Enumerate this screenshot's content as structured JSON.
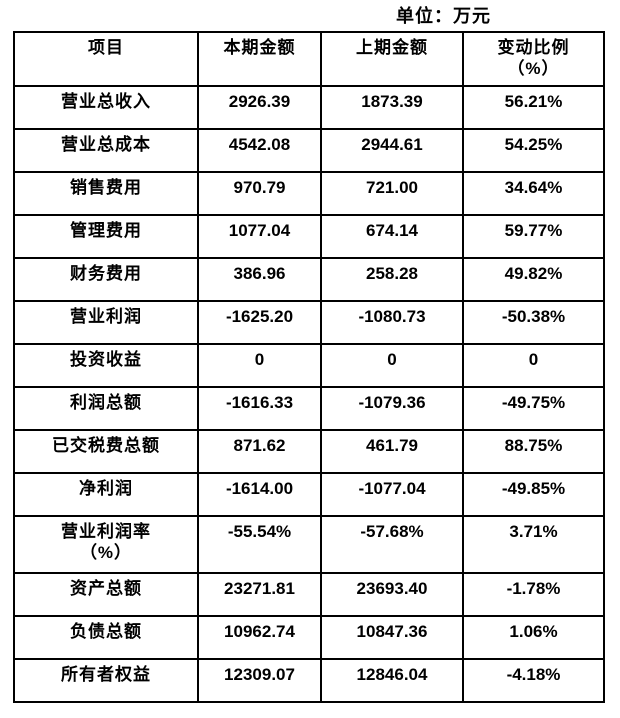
{
  "page": {
    "unit_label": "单位：万元"
  },
  "table": {
    "headers": [
      {
        "line1": "项目",
        "line2": ""
      },
      {
        "line1": "本期金额",
        "line2": ""
      },
      {
        "line1": "上期金额",
        "line2": ""
      },
      {
        "line1": "变动比例",
        "line2": "（%）"
      }
    ],
    "rows": [
      {
        "item": "营业总收入",
        "current": "2926.39",
        "previous": "1873.39",
        "change": "56.21%"
      },
      {
        "item": "营业总成本",
        "current": "4542.08",
        "previous": "2944.61",
        "change": "54.25%"
      },
      {
        "item": "销售费用",
        "current": "970.79",
        "previous": "721.00",
        "change": "34.64%"
      },
      {
        "item": "管理费用",
        "current": "1077.04",
        "previous": "674.14",
        "change": "59.77%"
      },
      {
        "item": "财务费用",
        "current": "386.96",
        "previous": "258.28",
        "change": "49.82%"
      },
      {
        "item": "营业利润",
        "current": "-1625.20",
        "previous": "-1080.73",
        "change": "-50.38%"
      },
      {
        "item": "投资收益",
        "current": "0",
        "previous": "0",
        "change": "0"
      },
      {
        "item": "利润总额",
        "current": "-1616.33",
        "previous": "-1079.36",
        "change": "-49.75%"
      },
      {
        "item": "已交税费总额",
        "current": "871.62",
        "previous": "461.79",
        "change": "88.75%"
      },
      {
        "item": "净利润",
        "current": "-1614.00",
        "previous": "-1077.04",
        "change": "-49.85%"
      },
      {
        "item": "营业利润率",
        "item_line2": "（%）",
        "current": "-55.54%",
        "previous": "-57.68%",
        "change": "3.71%"
      },
      {
        "item": "资产总额",
        "current": "23271.81",
        "previous": "23693.40",
        "change": "-1.78%"
      },
      {
        "item": "负债总额",
        "current": "10962.74",
        "previous": "10847.36",
        "change": "1.06%"
      },
      {
        "item": "所有者权益",
        "current": "12309.07",
        "previous": "12846.04",
        "change": "-4.18%"
      }
    ]
  }
}
